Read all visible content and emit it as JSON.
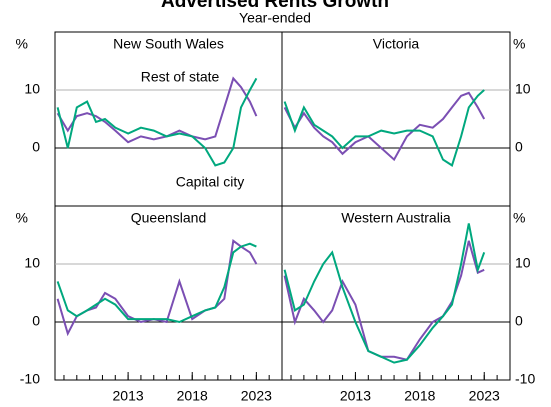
{
  "title": "Advertised Rents Growth",
  "subtitle": "Year-ended",
  "chart_data": [
    {
      "type": "line",
      "title": "New South Wales",
      "y_label": "%",
      "xlim": [
        2007.3,
        2025
      ],
      "ylim": [
        -10,
        20
      ],
      "yticks": [
        0,
        10
      ],
      "xticks": [],
      "x": [
        2007.5,
        2008.3,
        2009,
        2009.8,
        2010.5,
        2011.2,
        2012,
        2013,
        2014,
        2015,
        2016,
        2017,
        2018,
        2019,
        2019.8,
        2020.5,
        2021.2,
        2021.8,
        2022.5,
        2023
      ],
      "series": [
        {
          "name": "Rest of state",
          "color": "#7b4fb3",
          "values": [
            6,
            3,
            5.5,
            6,
            5.5,
            4.5,
            3,
            1,
            2,
            1.5,
            2,
            3,
            2,
            1.5,
            2,
            7,
            12,
            10.5,
            8,
            5.5
          ]
        },
        {
          "name": "Capital city",
          "color": "#00a87e",
          "values": [
            7,
            0,
            7,
            8,
            4.5,
            5,
            3.5,
            2.5,
            3.5,
            3,
            2,
            2.5,
            2,
            0,
            -3,
            -2.5,
            0,
            7,
            10,
            12
          ]
        }
      ]
    },
    {
      "type": "line",
      "title": "Victoria",
      "y_label": "%",
      "xlim": [
        2007.3,
        2025
      ],
      "ylim": [
        -10,
        20
      ],
      "yticks": [
        0,
        10
      ],
      "xticks": [],
      "x": [
        2007.5,
        2008.3,
        2009,
        2009.8,
        2010.5,
        2011.2,
        2012,
        2013,
        2014,
        2015,
        2016,
        2017,
        2018,
        2019,
        2019.8,
        2020.5,
        2021.2,
        2021.8,
        2022.5,
        2023
      ],
      "series": [
        {
          "name": "Rest of state",
          "color": "#7b4fb3",
          "values": [
            7,
            3.5,
            6,
            3.5,
            2,
            1,
            -1,
            1,
            2,
            0,
            -2,
            2,
            4,
            3.5,
            5,
            7,
            9,
            9.5,
            7,
            5
          ]
        },
        {
          "name": "Capital city",
          "color": "#00a87e",
          "values": [
            8,
            3,
            7,
            4,
            3,
            2,
            0,
            2,
            2,
            3,
            2.5,
            3,
            3,
            2,
            -2,
            -3,
            2,
            7,
            9,
            10
          ]
        }
      ]
    },
    {
      "type": "line",
      "title": "Queensland",
      "y_label": "%",
      "xlim": [
        2007.3,
        2025
      ],
      "ylim": [
        -10,
        20
      ],
      "yticks": [
        -10,
        0,
        10
      ],
      "xticks": [
        2013,
        2018,
        2023
      ],
      "x": [
        2007.5,
        2008.3,
        2009,
        2009.8,
        2010.5,
        2011.2,
        2012,
        2013,
        2014,
        2015,
        2016,
        2017,
        2018,
        2019,
        2019.8,
        2020.5,
        2021.2,
        2021.8,
        2022.5,
        2023
      ],
      "series": [
        {
          "name": "Rest of state",
          "color": "#7b4fb3",
          "values": [
            4,
            -2,
            1,
            2,
            2.5,
            5,
            4,
            1,
            0,
            0.5,
            0,
            7,
            0.5,
            2,
            2.5,
            4,
            14,
            13,
            12,
            10
          ]
        },
        {
          "name": "Capital city",
          "color": "#00a87e",
          "values": [
            7,
            2,
            1,
            2,
            3,
            4,
            3,
            0.5,
            0.5,
            0.5,
            0.5,
            0,
            1,
            2,
            2.5,
            6,
            12,
            13,
            13.5,
            13
          ]
        }
      ]
    },
    {
      "type": "line",
      "title": "Western Australia",
      "y_label": "%",
      "xlim": [
        2007.3,
        2025
      ],
      "ylim": [
        -10,
        20
      ],
      "yticks": [
        -10,
        0,
        10
      ],
      "xticks": [
        2013,
        2018,
        2023
      ],
      "x": [
        2007.5,
        2008.3,
        2009,
        2009.8,
        2010.5,
        2011.2,
        2012,
        2013,
        2014,
        2015,
        2016,
        2017,
        2018,
        2019,
        2019.8,
        2020.5,
        2021.2,
        2021.8,
        2022.5,
        2023
      ],
      "series": [
        {
          "name": "Rest of state",
          "color": "#7b4fb3",
          "values": [
            8,
            0,
            4,
            2,
            0,
            2,
            7,
            3,
            -5,
            -6,
            -6,
            -6.5,
            -3,
            0,
            1,
            3.5,
            8,
            14,
            8.5,
            9
          ]
        },
        {
          "name": "Capital city",
          "color": "#00a87e",
          "values": [
            9,
            2,
            3,
            7,
            10,
            12,
            6,
            0,
            -5,
            -6,
            -7,
            -6.5,
            -4,
            -1,
            1,
            3,
            10,
            17,
            9,
            12
          ]
        }
      ]
    }
  ]
}
